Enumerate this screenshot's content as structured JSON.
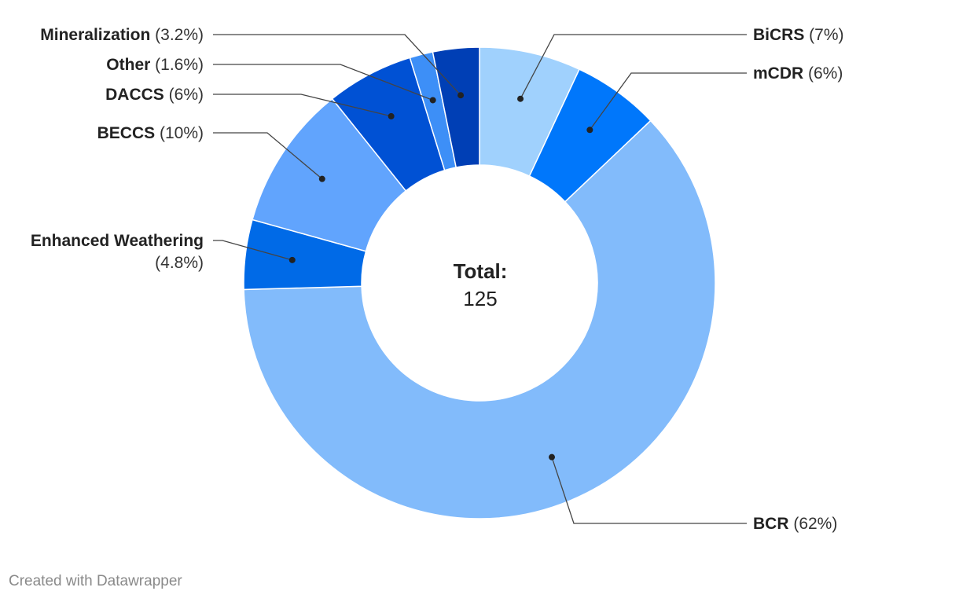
{
  "chart_data": {
    "type": "pie",
    "center": {
      "title": "Total:",
      "value": "125"
    },
    "slices": [
      {
        "name": "BiCRS",
        "pct_label": "(7%)",
        "value": 7,
        "color": "#a0d1fd"
      },
      {
        "name": "mCDR",
        "pct_label": "(6%)",
        "value": 6,
        "color": "#0077fb"
      },
      {
        "name": "BCR",
        "pct_label": "(62%)",
        "value": 62,
        "color": "#82bbfb"
      },
      {
        "name": "Enhanced Weathering",
        "pct_label": "(4.8%)",
        "value": 4.8,
        "color": "#006ae7"
      },
      {
        "name": "BECCS",
        "pct_label": "(10%)",
        "value": 10,
        "color": "#61a4fd"
      },
      {
        "name": "DACCS",
        "pct_label": "(6%)",
        "value": 6,
        "color": "#0051d4"
      },
      {
        "name": "Other",
        "pct_label": "(1.6%)",
        "value": 1.6,
        "color": "#3d8ff7"
      },
      {
        "name": "Mineralization",
        "pct_label": "(3.2%)",
        "value": 3.2,
        "color": "#003fb5"
      }
    ]
  },
  "footer": {
    "credit": "Created with Datawrapper"
  }
}
